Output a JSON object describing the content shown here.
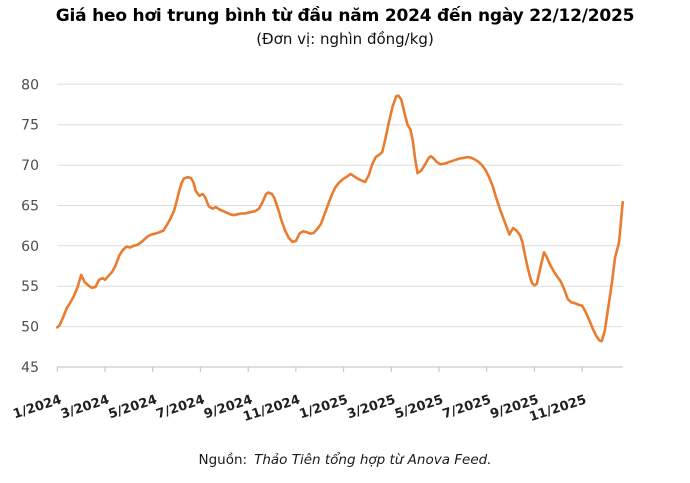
{
  "title": "Giá heo hơi trung bình từ đầu năm 2024 đến ngày 22/12/2025",
  "subtitle": "(Đơn vị: nghìn đồng/kg)",
  "source": {
    "label": "Nguồn:",
    "text": "Thảo Tiên tổng hợp từ Anova Feed."
  },
  "colors": {
    "line": "#E97C2E",
    "gridline": "#DDDDDD",
    "axis": "#BFBFBF",
    "y_label": "#4D4D4D",
    "x_label": "#1F1F1F",
    "background": "#FFFFFF"
  },
  "chart_data": {
    "type": "line",
    "title": "Giá heo hơi trung bình từ đầu năm 2024 đến ngày 22/12/2025",
    "unit_label": "(Đơn vị: nghìn đồng/kg)",
    "xlabel": "",
    "ylabel": "nghìn đồng/kg",
    "ylim": [
      45,
      80
    ],
    "y_ticks": [
      45,
      50,
      55,
      60,
      65,
      70,
      75,
      80
    ],
    "grid": "horizontal",
    "legend_position": "none",
    "x_domain_months": [
      0,
      23.7
    ],
    "x_ticks": [
      {
        "label": "1/2024",
        "month": 0
      },
      {
        "label": "3/2024",
        "month": 2
      },
      {
        "label": "5/2024",
        "month": 4
      },
      {
        "label": "7/2024",
        "month": 6
      },
      {
        "label": "9/2024",
        "month": 8
      },
      {
        "label": "11/2024",
        "month": 10
      },
      {
        "label": "1/2025",
        "month": 12
      },
      {
        "label": "3/2025",
        "month": 14
      },
      {
        "label": "5/2025",
        "month": 16
      },
      {
        "label": "7/2025",
        "month": 18
      },
      {
        "label": "9/2025",
        "month": 20
      },
      {
        "label": "11/2025",
        "month": 22
      }
    ],
    "series": [
      {
        "name": "Giá heo hơi trung bình (nghìn đồng/kg)",
        "points": [
          [
            0.0,
            49.9
          ],
          [
            0.1,
            50.2
          ],
          [
            0.25,
            51.2
          ],
          [
            0.4,
            52.3
          ],
          [
            0.55,
            53.0
          ],
          [
            0.7,
            53.8
          ],
          [
            0.85,
            54.9
          ],
          [
            1.0,
            56.4
          ],
          [
            1.15,
            55.5
          ],
          [
            1.3,
            55.1
          ],
          [
            1.45,
            54.8
          ],
          [
            1.6,
            54.9
          ],
          [
            1.75,
            55.8
          ],
          [
            1.9,
            56.0
          ],
          [
            2.0,
            55.8
          ],
          [
            2.15,
            56.3
          ],
          [
            2.3,
            56.8
          ],
          [
            2.45,
            57.6
          ],
          [
            2.6,
            58.8
          ],
          [
            2.75,
            59.5
          ],
          [
            2.9,
            59.9
          ],
          [
            3.05,
            59.8
          ],
          [
            3.2,
            60.0
          ],
          [
            3.35,
            60.1
          ],
          [
            3.5,
            60.4
          ],
          [
            3.65,
            60.8
          ],
          [
            3.8,
            61.2
          ],
          [
            3.95,
            61.4
          ],
          [
            4.1,
            61.5
          ],
          [
            4.3,
            61.7
          ],
          [
            4.45,
            61.9
          ],
          [
            4.6,
            62.6
          ],
          [
            4.75,
            63.4
          ],
          [
            4.9,
            64.4
          ],
          [
            5.0,
            65.5
          ],
          [
            5.1,
            66.7
          ],
          [
            5.2,
            67.7
          ],
          [
            5.3,
            68.3
          ],
          [
            5.45,
            68.5
          ],
          [
            5.6,
            68.4
          ],
          [
            5.7,
            67.9
          ],
          [
            5.8,
            66.8
          ],
          [
            5.95,
            66.2
          ],
          [
            6.1,
            66.4
          ],
          [
            6.2,
            66.0
          ],
          [
            6.35,
            64.9
          ],
          [
            6.5,
            64.6
          ],
          [
            6.65,
            64.8
          ],
          [
            6.8,
            64.5
          ],
          [
            6.95,
            64.3
          ],
          [
            7.1,
            64.1
          ],
          [
            7.25,
            63.9
          ],
          [
            7.4,
            63.8
          ],
          [
            7.55,
            63.9
          ],
          [
            7.7,
            64.0
          ],
          [
            7.85,
            64.0
          ],
          [
            8.0,
            64.1
          ],
          [
            8.15,
            64.2
          ],
          [
            8.3,
            64.3
          ],
          [
            8.45,
            64.6
          ],
          [
            8.6,
            65.4
          ],
          [
            8.75,
            66.4
          ],
          [
            8.85,
            66.6
          ],
          [
            9.0,
            66.4
          ],
          [
            9.1,
            65.9
          ],
          [
            9.25,
            64.6
          ],
          [
            9.4,
            63.1
          ],
          [
            9.55,
            61.9
          ],
          [
            9.7,
            61.0
          ],
          [
            9.85,
            60.5
          ],
          [
            10.0,
            60.6
          ],
          [
            10.15,
            61.5
          ],
          [
            10.3,
            61.8
          ],
          [
            10.45,
            61.7
          ],
          [
            10.6,
            61.5
          ],
          [
            10.75,
            61.6
          ],
          [
            10.9,
            62.1
          ],
          [
            11.05,
            62.7
          ],
          [
            11.2,
            63.9
          ],
          [
            11.35,
            65.1
          ],
          [
            11.5,
            66.3
          ],
          [
            11.65,
            67.2
          ],
          [
            11.8,
            67.8
          ],
          [
            11.95,
            68.2
          ],
          [
            12.15,
            68.6
          ],
          [
            12.3,
            68.9
          ],
          [
            12.45,
            68.6
          ],
          [
            12.6,
            68.3
          ],
          [
            12.75,
            68.1
          ],
          [
            12.9,
            67.9
          ],
          [
            13.05,
            68.7
          ],
          [
            13.2,
            70.1
          ],
          [
            13.35,
            71.0
          ],
          [
            13.5,
            71.3
          ],
          [
            13.62,
            71.6
          ],
          [
            13.75,
            73.2
          ],
          [
            13.9,
            75.3
          ],
          [
            14.05,
            77.2
          ],
          [
            14.2,
            78.5
          ],
          [
            14.3,
            78.6
          ],
          [
            14.42,
            78.1
          ],
          [
            14.55,
            76.5
          ],
          [
            14.68,
            75.0
          ],
          [
            14.8,
            74.4
          ],
          [
            14.9,
            73.0
          ],
          [
            15.0,
            70.8
          ],
          [
            15.1,
            69.0
          ],
          [
            15.25,
            69.3
          ],
          [
            15.4,
            70.0
          ],
          [
            15.55,
            70.8
          ],
          [
            15.65,
            71.1
          ],
          [
            15.75,
            70.9
          ],
          [
            15.9,
            70.4
          ],
          [
            16.05,
            70.1
          ],
          [
            16.25,
            70.2
          ],
          [
            16.45,
            70.4
          ],
          [
            16.65,
            70.6
          ],
          [
            16.85,
            70.8
          ],
          [
            17.05,
            70.9
          ],
          [
            17.2,
            71.0
          ],
          [
            17.35,
            70.9
          ],
          [
            17.5,
            70.7
          ],
          [
            17.65,
            70.4
          ],
          [
            17.8,
            70.0
          ],
          [
            17.95,
            69.4
          ],
          [
            18.1,
            68.5
          ],
          [
            18.25,
            67.4
          ],
          [
            18.4,
            65.9
          ],
          [
            18.55,
            64.6
          ],
          [
            18.7,
            63.4
          ],
          [
            18.85,
            62.2
          ],
          [
            18.95,
            61.4
          ],
          [
            19.1,
            62.2
          ],
          [
            19.25,
            61.9
          ],
          [
            19.4,
            61.3
          ],
          [
            19.5,
            60.4
          ],
          [
            19.6,
            58.9
          ],
          [
            19.7,
            57.5
          ],
          [
            19.8,
            56.3
          ],
          [
            19.9,
            55.4
          ],
          [
            20.0,
            55.1
          ],
          [
            20.1,
            55.3
          ],
          [
            20.25,
            57.3
          ],
          [
            20.4,
            59.2
          ],
          [
            20.5,
            58.7
          ],
          [
            20.65,
            57.7
          ],
          [
            20.8,
            56.9
          ],
          [
            20.95,
            56.2
          ],
          [
            21.1,
            55.6
          ],
          [
            21.25,
            54.6
          ],
          [
            21.4,
            53.4
          ],
          [
            21.55,
            53.0
          ],
          [
            21.7,
            52.9
          ],
          [
            21.85,
            52.7
          ],
          [
            22.0,
            52.6
          ],
          [
            22.15,
            51.8
          ],
          [
            22.3,
            50.8
          ],
          [
            22.45,
            49.7
          ],
          [
            22.6,
            48.8
          ],
          [
            22.72,
            48.3
          ],
          [
            22.82,
            48.2
          ],
          [
            22.95,
            49.5
          ],
          [
            23.1,
            52.5
          ],
          [
            23.25,
            55.5
          ],
          [
            23.38,
            58.6
          ],
          [
            23.48,
            59.7
          ],
          [
            23.55,
            60.5
          ],
          [
            23.62,
            62.8
          ],
          [
            23.7,
            65.4
          ]
        ]
      }
    ]
  }
}
